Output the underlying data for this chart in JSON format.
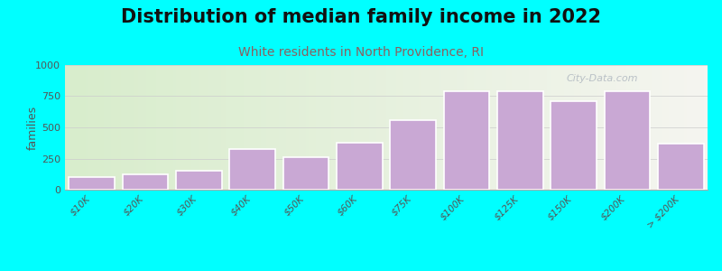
{
  "title": "Distribution of median family income in 2022",
  "subtitle": "White residents in North Providence, RI",
  "ylabel": "families",
  "background_color": "#00FFFF",
  "bar_color": "#c9a8d4",
  "bar_edge_color": "#ffffff",
  "categories": [
    "$10K",
    "$20K",
    "$30K",
    "$40K",
    "$50K",
    "$60K",
    "$75K",
    "$100K",
    "$125K",
    "$150K",
    "$200K",
    "> $200K"
  ],
  "values": [
    100,
    125,
    150,
    325,
    260,
    375,
    560,
    790,
    790,
    710,
    790,
    370
  ],
  "ylim": [
    0,
    1000
  ],
  "yticks": [
    0,
    250,
    500,
    750,
    1000
  ],
  "title_fontsize": 15,
  "subtitle_fontsize": 10,
  "subtitle_color": "#8b6060",
  "watermark": "City-Data.com",
  "title_fontweight": "bold",
  "grad_left_color": "#d8edcc",
  "grad_right_color": "#f5f5f0"
}
